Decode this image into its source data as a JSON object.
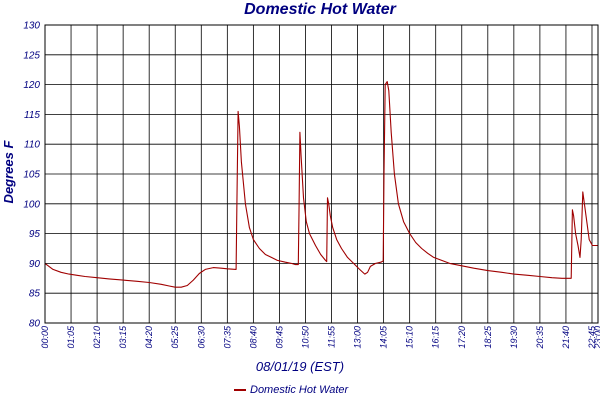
{
  "chart_data": {
    "type": "line",
    "title": "Domestic Hot Water",
    "xlabel": "08/01/19 (EST)",
    "ylabel": "Degrees F",
    "ylim": [
      80,
      130
    ],
    "yticks": [
      80,
      85,
      90,
      95,
      100,
      105,
      110,
      115,
      120,
      125,
      130
    ],
    "xlim": [
      0,
      1380
    ],
    "xticks": [
      {
        "label": "00:00",
        "minute": 0
      },
      {
        "label": "01:05",
        "minute": 65
      },
      {
        "label": "02:10",
        "minute": 130
      },
      {
        "label": "03:15",
        "minute": 195
      },
      {
        "label": "04:20",
        "minute": 260
      },
      {
        "label": "05:25",
        "minute": 325
      },
      {
        "label": "06:30",
        "minute": 390
      },
      {
        "label": "07:35",
        "minute": 455
      },
      {
        "label": "08:40",
        "minute": 520
      },
      {
        "label": "09:45",
        "minute": 585
      },
      {
        "label": "10:50",
        "minute": 650
      },
      {
        "label": "11:55",
        "minute": 715
      },
      {
        "label": "13:00",
        "minute": 780
      },
      {
        "label": "14:05",
        "minute": 845
      },
      {
        "label": "15:10",
        "minute": 910
      },
      {
        "label": "16:15",
        "minute": 975
      },
      {
        "label": "17:20",
        "minute": 1040
      },
      {
        "label": "18:25",
        "minute": 1105
      },
      {
        "label": "19:30",
        "minute": 1170
      },
      {
        "label": "20:35",
        "minute": 1235
      },
      {
        "label": "21:40",
        "minute": 1300
      },
      {
        "label": "22:45",
        "minute": 1365
      },
      {
        "label": "23:00",
        "minute": 1380
      }
    ],
    "grid": true,
    "legend_position": "bottom",
    "series": [
      {
        "name": "Domestic Hot Water",
        "color": "#a00000",
        "points": [
          [
            0,
            90
          ],
          [
            10,
            89.5
          ],
          [
            20,
            89
          ],
          [
            40,
            88.5
          ],
          [
            60,
            88.2
          ],
          [
            80,
            88
          ],
          [
            100,
            87.8
          ],
          [
            130,
            87.6
          ],
          [
            160,
            87.4
          ],
          [
            195,
            87.2
          ],
          [
            230,
            87
          ],
          [
            260,
            86.8
          ],
          [
            290,
            86.5
          ],
          [
            310,
            86.2
          ],
          [
            325,
            86
          ],
          [
            340,
            86
          ],
          [
            355,
            86.3
          ],
          [
            370,
            87.2
          ],
          [
            385,
            88.3
          ],
          [
            400,
            89
          ],
          [
            420,
            89.3
          ],
          [
            440,
            89.2
          ],
          [
            455,
            89.1
          ],
          [
            477,
            89
          ],
          [
            479,
            100
          ],
          [
            482,
            115.5
          ],
          [
            485,
            113
          ],
          [
            490,
            107
          ],
          [
            500,
            100
          ],
          [
            510,
            96
          ],
          [
            520,
            94
          ],
          [
            535,
            92.5
          ],
          [
            550,
            91.5
          ],
          [
            565,
            91
          ],
          [
            580,
            90.5
          ],
          [
            600,
            90.2
          ],
          [
            615,
            90
          ],
          [
            625,
            89.8
          ],
          [
            632,
            89.8
          ],
          [
            634,
            100
          ],
          [
            636,
            112
          ],
          [
            639,
            108
          ],
          [
            645,
            101
          ],
          [
            652,
            97
          ],
          [
            660,
            95
          ],
          [
            675,
            93
          ],
          [
            688,
            91.5
          ],
          [
            700,
            90.5
          ],
          [
            703,
            90.3
          ],
          [
            705,
            101
          ],
          [
            708,
            100
          ],
          [
            712,
            98
          ],
          [
            718,
            96
          ],
          [
            728,
            94
          ],
          [
            740,
            92.5
          ],
          [
            755,
            91
          ],
          [
            770,
            90
          ],
          [
            785,
            89
          ],
          [
            798,
            88.2
          ],
          [
            805,
            88.5
          ],
          [
            812,
            89.5
          ],
          [
            825,
            90
          ],
          [
            838,
            90.2
          ],
          [
            844,
            90.4
          ],
          [
            846,
            105
          ],
          [
            849,
            120
          ],
          [
            854,
            120.5
          ],
          [
            858,
            119
          ],
          [
            864,
            112
          ],
          [
            872,
            105
          ],
          [
            882,
            100
          ],
          [
            895,
            97
          ],
          [
            910,
            95
          ],
          [
            925,
            93.5
          ],
          [
            940,
            92.5
          ],
          [
            955,
            91.7
          ],
          [
            970,
            91
          ],
          [
            990,
            90.5
          ],
          [
            1010,
            90
          ],
          [
            1040,
            89.6
          ],
          [
            1070,
            89.2
          ],
          [
            1105,
            88.8
          ],
          [
            1140,
            88.5
          ],
          [
            1170,
            88.2
          ],
          [
            1205,
            88
          ],
          [
            1235,
            87.8
          ],
          [
            1265,
            87.6
          ],
          [
            1290,
            87.5
          ],
          [
            1313,
            87.5
          ],
          [
            1316,
            99
          ],
          [
            1319,
            98
          ],
          [
            1324,
            95
          ],
          [
            1330,
            93
          ],
          [
            1335,
            91
          ],
          [
            1338,
            94
          ],
          [
            1342,
            102
          ],
          [
            1346,
            100
          ],
          [
            1352,
            97
          ],
          [
            1358,
            94
          ],
          [
            1366,
            93
          ],
          [
            1380,
            93
          ]
        ]
      }
    ]
  }
}
